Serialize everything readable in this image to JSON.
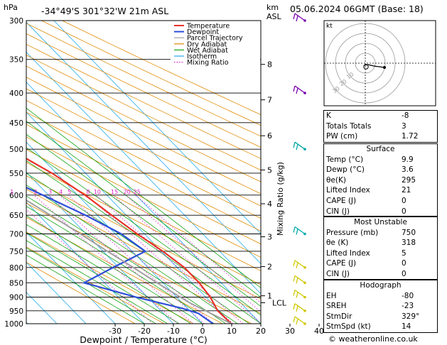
{
  "header": {
    "pressure_unit": "hPa",
    "location": "-34°49'S  301°32'W  21m  ASL",
    "km_unit": "km",
    "asl_unit": "ASL",
    "datetime": "05.06.2024  06GMT  (Base: 18)"
  },
  "colors": {
    "temperature": "#e8322a",
    "dewpoint": "#2c4fd9",
    "parcel": "#a0a0a0",
    "dry_adiabat": "#e08a00",
    "wet_adiabat": "#16a516",
    "isotherm": "#22aaee",
    "mixing_ratio": "#e020c8",
    "wind_barb_upper": "#7a00b4",
    "wind_barb_mid": "#00a8a8",
    "wind_barb_low": "#d2c800"
  },
  "legend": [
    "Temperature",
    "Dewpoint",
    "Parcel Trajectory",
    "Dry Adiabat",
    "Wet Adiabat",
    "Isotherm",
    "Mixing Ratio"
  ],
  "chart_data": {
    "type": "line",
    "subtype": "skew-T log-P diagram",
    "xlabel": "Dewpoint / Temperature (°C)",
    "ylabel_right": "Mixing Ratio (g/kg)",
    "x_ticks": [
      -30,
      -20,
      -10,
      0,
      10,
      20,
      30,
      40
    ],
    "xlim": [
      -35,
      40
    ],
    "pressure_levels": [
      300,
      350,
      400,
      450,
      500,
      550,
      600,
      650,
      700,
      750,
      800,
      850,
      900,
      950,
      1000
    ],
    "ylim": [
      1000,
      300
    ],
    "km_ticks": [
      {
        "label": "8",
        "p": 357
      },
      {
        "label": "7",
        "p": 411
      },
      {
        "label": "6",
        "p": 474
      },
      {
        "label": "5",
        "p": 543
      },
      {
        "label": "4",
        "p": 621
      },
      {
        "label": "3",
        "p": 708
      },
      {
        "label": "2",
        "p": 797
      },
      {
        "label": "1",
        "p": 895
      }
    ],
    "lcl": {
      "label": "LCL",
      "p": 920
    },
    "mixing_ratio_labels": [
      "1",
      "2",
      "3",
      "4",
      "5",
      "8",
      "10",
      "15",
      "20",
      "25"
    ],
    "mixing_ratio_values": [
      1,
      2,
      3,
      4,
      5,
      8,
      10,
      15,
      20,
      25
    ],
    "series": [
      {
        "name": "Temperature",
        "points": [
          {
            "p": 1000,
            "t": 9.9
          },
          {
            "p": 950,
            "t": 9.5
          },
          {
            "p": 900,
            "t": 11.5
          },
          {
            "p": 850,
            "t": 12.5
          },
          {
            "p": 800,
            "t": 12.5
          },
          {
            "p": 750,
            "t": 10.5
          },
          {
            "p": 700,
            "t": 7.5
          },
          {
            "p": 650,
            "t": 5.0
          },
          {
            "p": 600,
            "t": 2.5
          },
          {
            "p": 550,
            "t": -1.5
          },
          {
            "p": 500,
            "t": -8.0
          },
          {
            "p": 450,
            "t": -15.0
          },
          {
            "p": 400,
            "t": -22.5
          },
          {
            "p": 350,
            "t": -31.0
          },
          {
            "p": 300,
            "t": -40.0
          }
        ]
      },
      {
        "name": "Dewpoint",
        "points": [
          {
            "p": 1000,
            "t": 3.6
          },
          {
            "p": 960,
            "t": 2.0
          },
          {
            "p": 940,
            "t": -2.0
          },
          {
            "p": 900,
            "t": -14.0
          },
          {
            "p": 850,
            "t": -27.0
          },
          {
            "p": 800,
            "t": -12.0
          },
          {
            "p": 750,
            "t": 4.5
          },
          {
            "p": 700,
            "t": 2.0
          },
          {
            "p": 650,
            "t": -4.0
          },
          {
            "p": 600,
            "t": -12.0
          },
          {
            "p": 550,
            "t": -21.0
          },
          {
            "p": 500,
            "t": -24.0
          },
          {
            "p": 450,
            "t": -28.0
          },
          {
            "p": 400,
            "t": -36.0
          },
          {
            "p": 350,
            "t": -46.0
          },
          {
            "p": 300,
            "t": -55.0
          }
        ]
      },
      {
        "name": "Parcel Trajectory",
        "points": [
          {
            "p": 1000,
            "t": 9.9
          },
          {
            "p": 920,
            "t": 2.5
          },
          {
            "p": 850,
            "t": -2.0
          },
          {
            "p": 800,
            "t": -5.0
          },
          {
            "p": 750,
            "t": -8.5
          },
          {
            "p": 700,
            "t": -12.0
          },
          {
            "p": 650,
            "t": -16.0
          },
          {
            "p": 600,
            "t": -20.5
          },
          {
            "p": 550,
            "t": -25.5
          },
          {
            "p": 500,
            "t": -31.0
          },
          {
            "p": 450,
            "t": -37.0
          },
          {
            "p": 400,
            "t": -44.0
          },
          {
            "p": 350,
            "t": -51.5
          },
          {
            "p": 300,
            "t": -60.0
          }
        ]
      }
    ],
    "wind_barbs": [
      {
        "p": 300,
        "group": "upper"
      },
      {
        "p": 400,
        "group": "upper"
      },
      {
        "p": 500,
        "group": "mid"
      },
      {
        "p": 700,
        "group": "mid"
      },
      {
        "p": 800,
        "group": "low"
      },
      {
        "p": 850,
        "group": "low"
      },
      {
        "p": 900,
        "group": "low"
      },
      {
        "p": 950,
        "group": "low"
      },
      {
        "p": 1000,
        "group": "low"
      }
    ],
    "hodograph": {
      "label": "kt",
      "ring_labels": [
        "10",
        "20",
        "30"
      ]
    }
  },
  "indices": [
    {
      "label": "K",
      "value": "-8"
    },
    {
      "label": "Totals Totals",
      "value": "3"
    },
    {
      "label": "PW (cm)",
      "value": "1.72"
    }
  ],
  "surface": {
    "title": "Surface",
    "rows": [
      {
        "label": "Temp (°C)",
        "value": "9.9"
      },
      {
        "label": "Dewp (°C)",
        "value": "3.6"
      },
      {
        "label": "θe(K)",
        "value": "295"
      },
      {
        "label": "Lifted Index",
        "value": "21"
      },
      {
        "label": "CAPE (J)",
        "value": "0"
      },
      {
        "label": "CIN (J)",
        "value": "0"
      }
    ]
  },
  "most_unstable": {
    "title": "Most Unstable",
    "rows": [
      {
        "label": "Pressure (mb)",
        "value": "750"
      },
      {
        "label": "θe (K)",
        "value": "318"
      },
      {
        "label": "Lifted Index",
        "value": "5"
      },
      {
        "label": "CAPE (J)",
        "value": "0"
      },
      {
        "label": "CIN (J)",
        "value": "0"
      }
    ]
  },
  "hodograph_panel": {
    "title": "Hodograph",
    "rows": [
      {
        "label": "EH",
        "value": "-80"
      },
      {
        "label": "SREH",
        "value": "-23"
      },
      {
        "label": "StmDir",
        "value": "329°"
      },
      {
        "label": "StmSpd (kt)",
        "value": "14"
      }
    ]
  },
  "copyright": "© weatheronline.co.uk"
}
